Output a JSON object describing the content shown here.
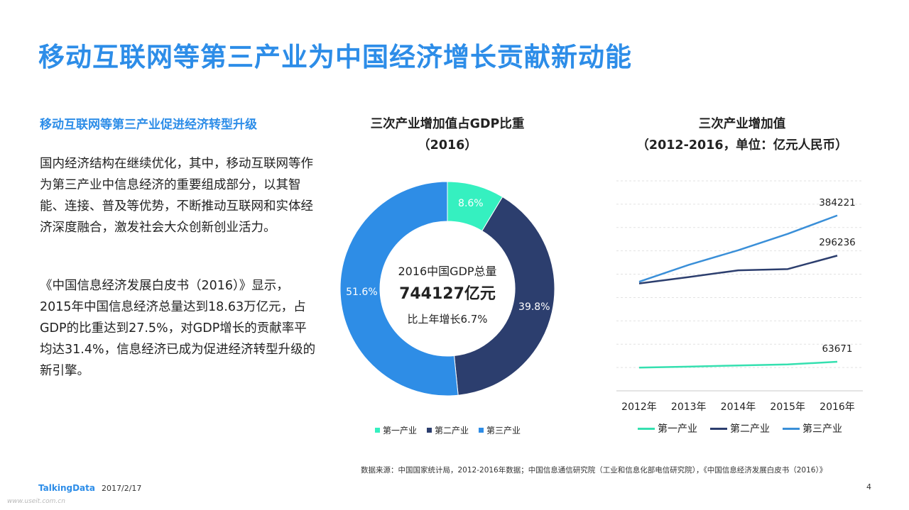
{
  "title": "移动互联网等第三产业为中国经济增长贡献新动能",
  "section_heading": "移动互联网等第三产业促进经济转型升级",
  "paragraph1": "国内经济结构在继续优化，其中，移动互联网等作为第三产业中信息经济的重要组成部分，以其智能、连接、普及等优势，不断推动互联网和实体经济深度融合，激发社会大众创新创业活力。",
  "paragraph2": "《中国信息经济发展白皮书（2016）》显示，2015年中国信息经济总量达到18.63万亿元，占GDP的比重达到27.5%，对GDP增长的贡献率平均达31.4%，信息经济已成为促进经济转型升级的新引擎。",
  "donut_center": {
    "line1": "2016中国GDP总量",
    "line2": "744127亿元",
    "line3": "比上年增长6.7%"
  },
  "chart_data": [
    {
      "type": "pie",
      "title": "三次产业增加值占GDP比重",
      "subtitle": "（2016）",
      "categories": [
        "第一产业",
        "第二产业",
        "第三产业"
      ],
      "values": [
        8.6,
        39.8,
        51.6
      ],
      "value_labels": [
        "8.6%",
        "39.8%",
        "51.6%"
      ],
      "colors": [
        "#35f0c0",
        "#2c3e6e",
        "#2e8de6"
      ],
      "legend_position": "bottom"
    },
    {
      "type": "line",
      "title": "三次产业增加值",
      "subtitle": "（2012-2016，单位：亿元人民币）",
      "categories": [
        "2012年",
        "2013年",
        "2014年",
        "2015年",
        "2016年"
      ],
      "series": [
        {
          "name": "第一产业",
          "color": "#35e0b0",
          "values": [
            50900,
            53000,
            55600,
            57800,
            63671
          ]
        },
        {
          "name": "第二产业",
          "color": "#2c3e6e",
          "values": [
            235300,
            249300,
            264000,
            266800,
            296236
          ]
        },
        {
          "name": "第三产业",
          "color": "#3a8fd8",
          "values": [
            239000,
            276000,
            308000,
            344000,
            384221
          ]
        }
      ],
      "end_labels": [
        "63671",
        "296236",
        "384221"
      ],
      "ylim": [
        0,
        460000
      ],
      "grid": true,
      "legend_position": "bottom"
    }
  ],
  "footer": {
    "source": "数据来源：中国国家统计局，2012-2016年数据；中国信息通信研究院（工业和信息化部电信研究院），《中国信息经济发展白皮书（2016）》",
    "logo": "TalkingData",
    "date": "2017/2/17",
    "page": "4",
    "watermark": "www.useit.com.cn"
  }
}
